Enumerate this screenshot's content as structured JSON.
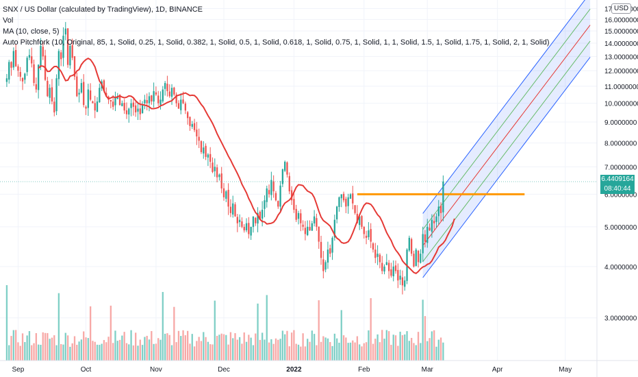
{
  "legend": {
    "title": "SNX / US Dollar (calculated by TradingView), 1D, BINANCE",
    "vol": "Vol",
    "ma": "MA (10, close, 5)",
    "pitchfork": "Auto Pitchfork (10, Original, 85, 1, Solid, 0.25, 1, Solid, 0.382, 1, Solid, 0.5, 1, Solid, 0.618, 1, Solid, 0.75, 1, Solid, 1, 1, Solid, 1.5, 1, Solid, 1.75, 1, Solid, 2, 1, Solid)"
  },
  "currency_button": "USD",
  "price_tag": {
    "price": "6.4409164",
    "countdown": "08:40:44"
  },
  "colors": {
    "up": "#26a69a",
    "down": "#ef5350",
    "vol_up": "#7fcfc6",
    "vol_down": "#f7a8a6",
    "ma": "#e53935",
    "horizontal_line": "#ff9800",
    "pitchfork_outer": "#2962ff",
    "pitchfork_inner": "#66bb6a",
    "pitchfork_median": "#e53935"
  },
  "chart_data": {
    "type": "candlestick",
    "y_scale": "log",
    "ylim": [
      2.55,
      17.3
    ],
    "y_ticks": [
      "17.0000000",
      "16.0000000",
      "15.0000000",
      "14.0000000",
      "13.0000000",
      "12.0000000",
      "11.0000000",
      "10.0000000",
      "9.0000000",
      "8.0000000",
      "7.0000000",
      "6.0000000",
      "5.0000000",
      "4.0000000",
      "3.0000000"
    ],
    "y_tick_values": [
      17,
      16,
      15,
      14,
      13,
      12,
      11,
      10,
      9,
      8,
      7,
      6,
      5,
      4,
      3
    ],
    "x_ticks": [
      "Sep",
      "Oct",
      "Nov",
      "Dec",
      "2022",
      "Feb",
      "Mar",
      "Apr",
      "May"
    ],
    "x_tick_days": [
      5,
      35,
      66,
      96,
      127,
      158,
      186,
      217,
      247
    ],
    "x_range_days": [
      -3,
      261
    ],
    "horizontal_level": {
      "value": 6.0,
      "from_day": 155,
      "to_day": 229
    },
    "last_price": 6.4409164,
    "daily_closes": [
      11.5,
      12.6,
      12.2,
      13.4,
      12.3,
      12.0,
      11.6,
      11.3,
      11.8,
      12.9,
      13.1,
      12.5,
      11.2,
      10.8,
      12.4,
      13.8,
      13.0,
      11.4,
      10.4,
      10.9,
      10.1,
      9.5,
      11.5,
      13.4,
      12.8,
      14.6,
      15.2,
      12.4,
      13.8,
      12.9,
      11.6,
      10.4,
      10.6,
      11.2,
      9.9,
      9.7,
      10.8,
      10.2,
      10.0,
      9.6,
      10.1,
      10.9,
      11.3,
      10.7,
      10.4,
      10.2,
      10.1,
      9.8,
      10.3,
      10.4,
      9.9,
      10.0,
      9.6,
      9.4,
      9.7,
      10.0,
      9.8,
      9.5,
      9.7,
      9.4,
      9.9,
      10.2,
      10.0,
      10.4,
      10.1,
      10.7,
      10.5,
      10.0,
      10.2,
      10.8,
      11.2,
      10.7,
      10.4,
      10.9,
      10.5,
      10.0,
      9.7,
      10.2,
      10.0,
      9.6,
      9.2,
      8.8,
      8.9,
      8.6,
      8.3,
      8.1,
      7.6,
      7.8,
      7.4,
      7.5,
      7.2,
      6.8,
      7.0,
      6.6,
      6.7,
      6.2,
      5.9,
      6.1,
      5.6,
      5.4,
      5.7,
      5.3,
      5.1,
      5.2,
      5.0,
      4.9,
      5.1,
      4.8,
      5.0,
      5.3,
      5.1,
      5.4,
      5.2,
      5.5,
      5.8,
      6.2,
      6.0,
      6.5,
      6.1,
      5.8,
      5.6,
      6.3,
      6.9,
      7.2,
      6.7,
      6.1,
      5.8,
      5.5,
      5.2,
      5.4,
      5.1,
      5.0,
      4.8,
      5.0,
      4.9,
      5.1,
      5.3,
      5.0,
      4.6,
      4.2,
      3.9,
      4.1,
      4.4,
      4.3,
      4.7,
      5.2,
      5.6,
      5.9,
      6.0,
      5.8,
      5.6,
      5.9,
      6.0,
      5.7,
      5.4,
      5.1,
      5.3,
      5.0,
      4.8,
      4.7,
      4.9,
      4.6,
      4.4,
      4.2,
      4.3,
      4.1,
      3.9,
      4.0,
      4.1,
      3.9,
      3.8,
      4.0,
      3.9,
      3.7,
      3.8,
      3.6,
      3.7,
      4.4,
      4.7,
      4.3,
      4.0,
      4.4,
      4.1,
      4.3,
      4.8,
      4.6,
      5.0,
      4.9,
      5.2,
      5.1,
      5.3,
      5.6,
      5.4,
      6.44
    ],
    "start_day": 0,
    "ma_period": 10
  }
}
